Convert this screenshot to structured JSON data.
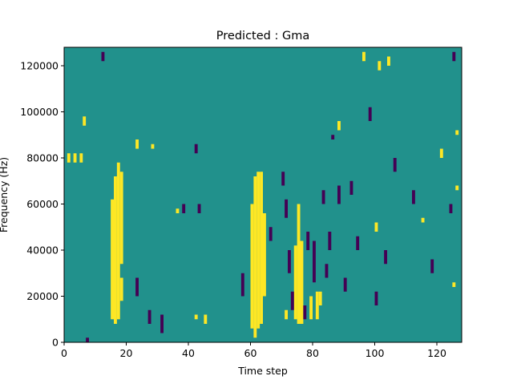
{
  "chart_data": {
    "type": "heatmap",
    "title": "Predicted : Gma",
    "xlabel": "Time step",
    "ylabel": "Frequency (Hz)",
    "xlim": [
      0,
      128
    ],
    "ylim": [
      0,
      128000
    ],
    "grid": false,
    "colorscale": {
      "background": "#21918c",
      "high": "#fde725",
      "low": "#440154"
    },
    "x_ticks": [
      {
        "value": 0,
        "label": "0"
      },
      {
        "value": 20,
        "label": "20"
      },
      {
        "value": 40,
        "label": "40"
      },
      {
        "value": 60,
        "label": "60"
      },
      {
        "value": 80,
        "label": "80"
      },
      {
        "value": 100,
        "label": "100"
      },
      {
        "value": 120,
        "label": "120"
      }
    ],
    "y_ticks": [
      {
        "value": 0,
        "label": "0"
      },
      {
        "value": 20000,
        "label": "20000"
      },
      {
        "value": 40000,
        "label": "40000"
      },
      {
        "value": 60000,
        "label": "60000"
      },
      {
        "value": 80000,
        "label": "80000"
      },
      {
        "value": 100000,
        "label": "100000"
      },
      {
        "value": 120000,
        "label": "120000"
      }
    ],
    "bin_height_hz": 1000,
    "high_segments": [
      [
        15,
        10000,
        62000
      ],
      [
        16,
        8000,
        72000
      ],
      [
        17,
        10000,
        78000
      ],
      [
        18,
        34000,
        74000
      ],
      [
        18,
        18000,
        28000
      ],
      [
        60,
        6000,
        60000
      ],
      [
        61,
        2000,
        72000
      ],
      [
        62,
        6000,
        74000
      ],
      [
        63,
        8000,
        74000
      ],
      [
        64,
        20000,
        56000
      ],
      [
        74,
        10000,
        42000
      ],
      [
        75,
        8000,
        60000
      ],
      [
        76,
        8000,
        44000
      ],
      [
        81,
        10000,
        22000
      ],
      [
        82,
        16000,
        22000
      ],
      [
        1,
        78000,
        82000
      ],
      [
        3,
        78000,
        82000
      ],
      [
        5,
        78000,
        82000
      ],
      [
        6,
        94000,
        98000
      ],
      [
        23,
        84000,
        88000
      ],
      [
        28,
        84000,
        86000
      ],
      [
        36,
        56000,
        58000
      ],
      [
        42,
        10000,
        12000
      ],
      [
        45,
        8000,
        12000
      ],
      [
        71,
        10000,
        14000
      ],
      [
        79,
        10000,
        20000
      ],
      [
        88,
        92000,
        96000
      ],
      [
        100,
        48000,
        52000
      ],
      [
        115,
        52000,
        54000
      ],
      [
        121,
        80000,
        84000
      ],
      [
        126,
        90000,
        92000
      ],
      [
        126,
        66000,
        68000
      ],
      [
        125,
        24000,
        26000
      ],
      [
        96,
        122000,
        126000
      ],
      [
        101,
        118000,
        122000
      ],
      [
        104,
        120000,
        124000
      ]
    ],
    "low_segments": [
      [
        7,
        0,
        2000
      ],
      [
        12,
        122000,
        126000
      ],
      [
        23,
        20000,
        28000
      ],
      [
        27,
        8000,
        14000
      ],
      [
        31,
        4000,
        12000
      ],
      [
        38,
        56000,
        60000
      ],
      [
        42,
        82000,
        86000
      ],
      [
        43,
        56000,
        60000
      ],
      [
        57,
        20000,
        30000
      ],
      [
        66,
        44000,
        50000
      ],
      [
        70,
        68000,
        74000
      ],
      [
        71,
        54000,
        62000
      ],
      [
        72,
        30000,
        40000
      ],
      [
        73,
        14000,
        22000
      ],
      [
        77,
        10000,
        16000
      ],
      [
        78,
        40000,
        48000
      ],
      [
        80,
        26000,
        44000
      ],
      [
        83,
        60000,
        66000
      ],
      [
        84,
        28000,
        34000
      ],
      [
        85,
        40000,
        48000
      ],
      [
        86,
        88000,
        90000
      ],
      [
        88,
        60000,
        68000
      ],
      [
        90,
        22000,
        28000
      ],
      [
        92,
        64000,
        70000
      ],
      [
        94,
        40000,
        46000
      ],
      [
        98,
        96000,
        102000
      ],
      [
        100,
        16000,
        22000
      ],
      [
        103,
        34000,
        40000
      ],
      [
        106,
        74000,
        80000
      ],
      [
        112,
        60000,
        66000
      ],
      [
        118,
        30000,
        36000
      ],
      [
        124,
        56000,
        60000
      ],
      [
        125,
        122000,
        126000
      ]
    ]
  }
}
